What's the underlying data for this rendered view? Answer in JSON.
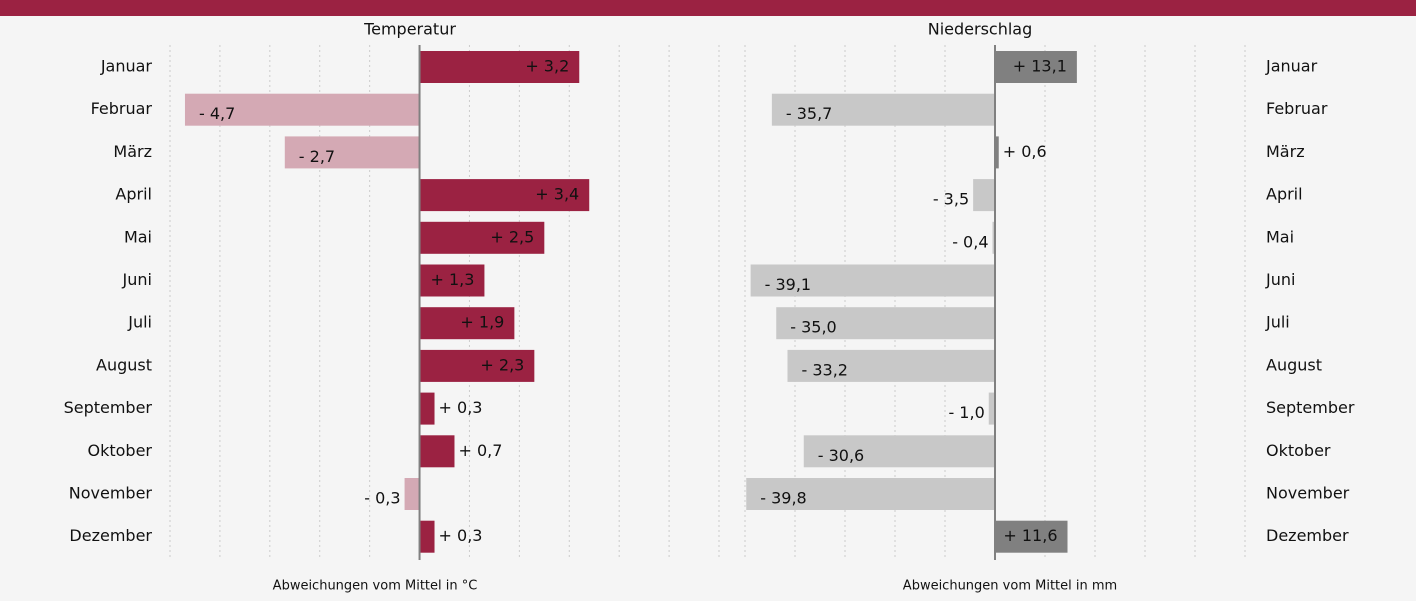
{
  "chart_data": [
    {
      "type": "hbar",
      "title": "Temperatur",
      "x_label": "Abweichungen vom Mittel in °C",
      "categories": [
        "Januar",
        "Februar",
        "März",
        "April",
        "Mai",
        "Juni",
        "Juli",
        "August",
        "September",
        "Oktober",
        "November",
        "Dezember"
      ],
      "values": [
        3.2,
        -4.7,
        -2.7,
        3.4,
        2.5,
        1.3,
        1.9,
        2.3,
        0.3,
        0.7,
        -0.3,
        0.3
      ],
      "value_labels": [
        "+ 3,2",
        "- 4,7",
        "- 2,7",
        "+ 3,4",
        "+ 2,5",
        "+ 1,3",
        "+ 1,9",
        "+ 2,3",
        "+ 0,3",
        "+ 0,7",
        "- 0,3",
        "+ 0,3"
      ],
      "positive_color": "#9b2242",
      "negative_color": "#d4a9b4",
      "positive_label_color": "#ffffff",
      "xlim": [
        -5,
        6
      ],
      "xticks": [
        -5,
        -4,
        -3,
        -2,
        -1,
        0,
        1,
        2,
        3,
        4,
        5,
        6
      ],
      "grid": true,
      "category_side": "left"
    },
    {
      "type": "hbar",
      "title": "Niederschlag",
      "x_label": "Abweichungen vom Mittel in mm",
      "categories": [
        "Januar",
        "Februar",
        "März",
        "April",
        "Mai",
        "Juni",
        "Juli",
        "August",
        "September",
        "Oktober",
        "November",
        "Dezember"
      ],
      "values": [
        13.1,
        -35.7,
        0.6,
        -3.5,
        -0.4,
        -39.1,
        -35.0,
        -33.2,
        -1.0,
        -30.6,
        -39.8,
        11.6
      ],
      "value_labels": [
        "+ 13,1",
        "- 35,7",
        "+ 0,6",
        "- 3,5",
        "- 0,4",
        "- 39,1",
        "- 35,0",
        "- 33,2",
        "- 1,0",
        "- 30,6",
        "- 39,8",
        "+ 11,6"
      ],
      "positive_color": "#808080",
      "negative_color": "#c8c8c8",
      "positive_label_color": "#111111",
      "xlim": [
        -40,
        40
      ],
      "xticks": [
        -40,
        -32,
        -24,
        -16,
        -8,
        0,
        8,
        16,
        24,
        32,
        40
      ],
      "grid": true,
      "category_side": "right"
    }
  ]
}
